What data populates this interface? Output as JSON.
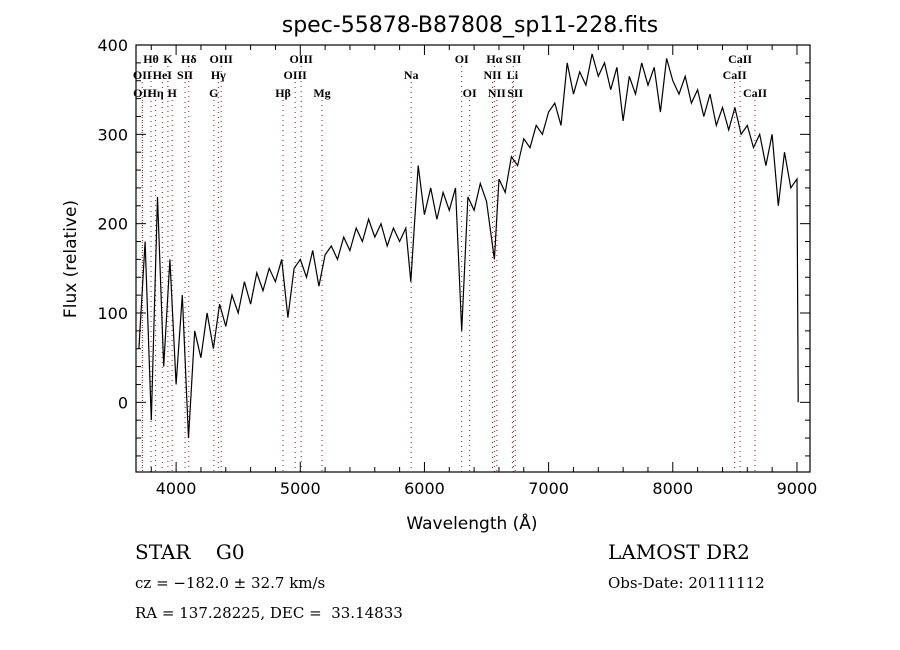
{
  "chart_data": {
    "type": "line",
    "title": "spec-55878-B87808_sp11-228.fits",
    "xlabel": "Wavelength (Å)",
    "ylabel": "Flux (relative)",
    "xlim": [
      3677,
      9105
    ],
    "ylim": [
      -78,
      400
    ],
    "xticks": [
      4000,
      5000,
      6000,
      7000,
      8000,
      9000
    ],
    "yticks": [
      0,
      100,
      200,
      300,
      400
    ],
    "grid": false,
    "series": [
      {
        "name": "spectrum",
        "x": [
          3700,
          3750,
          3800,
          3850,
          3900,
          3950,
          4000,
          4050,
          4100,
          4150,
          4200,
          4250,
          4300,
          4350,
          4400,
          4450,
          4500,
          4550,
          4600,
          4650,
          4700,
          4750,
          4800,
          4850,
          4900,
          4950,
          5000,
          5050,
          5100,
          5150,
          5200,
          5250,
          5300,
          5350,
          5400,
          5450,
          5500,
          5550,
          5600,
          5650,
          5700,
          5750,
          5800,
          5850,
          5890,
          5950,
          6000,
          6050,
          6100,
          6150,
          6200,
          6250,
          6300,
          6350,
          6400,
          6450,
          6500,
          6563,
          6600,
          6650,
          6700,
          6750,
          6800,
          6850,
          6900,
          6950,
          7000,
          7050,
          7100,
          7150,
          7200,
          7250,
          7300,
          7350,
          7400,
          7450,
          7500,
          7550,
          7600,
          7650,
          7700,
          7750,
          7800,
          7850,
          7900,
          7950,
          8000,
          8050,
          8100,
          8150,
          8200,
          8250,
          8300,
          8350,
          8400,
          8450,
          8500,
          8550,
          8600,
          8650,
          8700,
          8750,
          8800,
          8850,
          8900,
          8950,
          9000,
          9010
        ],
        "y": [
          60,
          180,
          -20,
          230,
          40,
          160,
          20,
          120,
          -40,
          80,
          50,
          100,
          60,
          110,
          85,
          120,
          100,
          135,
          110,
          145,
          125,
          150,
          135,
          160,
          95,
          150,
          160,
          140,
          170,
          130,
          165,
          175,
          160,
          185,
          170,
          195,
          180,
          205,
          185,
          200,
          175,
          195,
          180,
          195,
          135,
          265,
          210,
          240,
          205,
          235,
          215,
          240,
          80,
          230,
          215,
          245,
          225,
          160,
          250,
          235,
          275,
          265,
          295,
          285,
          310,
          300,
          325,
          335,
          310,
          380,
          345,
          370,
          355,
          390,
          365,
          380,
          350,
          375,
          315,
          365,
          345,
          380,
          355,
          375,
          325,
          385,
          360,
          345,
          365,
          335,
          350,
          320,
          345,
          310,
          330,
          305,
          330,
          300,
          310,
          285,
          300,
          265,
          300,
          220,
          280,
          240,
          250,
          0
        ]
      }
    ],
    "line_ids": [
      {
        "label": "Hθ",
        "wavelength": 3798,
        "row": 1
      },
      {
        "label": "K",
        "wavelength": 3934,
        "row": 1
      },
      {
        "label": "Hδ",
        "wavelength": 4102,
        "row": 1
      },
      {
        "label": "OIII",
        "wavelength": 4363,
        "row": 1
      },
      {
        "label": "OIII",
        "wavelength": 5007,
        "row": 1
      },
      {
        "label": "OI",
        "wavelength": 6300,
        "row": 1
      },
      {
        "label": "Hα",
        "wavelength": 6563,
        "row": 1
      },
      {
        "label": "SII",
        "wavelength": 6716,
        "row": 1
      },
      {
        "label": "CaII",
        "wavelength": 8542,
        "row": 1
      },
      {
        "label": "OII",
        "wavelength": 3727,
        "row": 2
      },
      {
        "label": "HeI",
        "wavelength": 3889,
        "row": 2
      },
      {
        "label": "SII",
        "wavelength": 4072,
        "row": 2
      },
      {
        "label": "Hγ",
        "wavelength": 4340,
        "row": 2
      },
      {
        "label": "OIII",
        "wavelength": 4959,
        "row": 2
      },
      {
        "label": "Na",
        "wavelength": 5893,
        "row": 2
      },
      {
        "label": "NII",
        "wavelength": 6548,
        "row": 2
      },
      {
        "label": "Li",
        "wavelength": 6708,
        "row": 2
      },
      {
        "label": "CaII",
        "wavelength": 8498,
        "row": 2
      },
      {
        "label": "OII",
        "wavelength": 3729,
        "row": 3
      },
      {
        "label": "Hη",
        "wavelength": 3835,
        "row": 3
      },
      {
        "label": "H",
        "wavelength": 3968,
        "row": 3
      },
      {
        "label": "G",
        "wavelength": 4304,
        "row": 3
      },
      {
        "label": "Hβ",
        "wavelength": 4861,
        "row": 3
      },
      {
        "label": "Mg",
        "wavelength": 5175,
        "row": 3
      },
      {
        "label": "OI",
        "wavelength": 6364,
        "row": 3
      },
      {
        "label": "NII",
        "wavelength": 6583,
        "row": 3
      },
      {
        "label": "SII",
        "wavelength": 6731,
        "row": 3
      },
      {
        "label": "CaII",
        "wavelength": 8662,
        "row": 3
      }
    ],
    "colors": {
      "line": "#000000",
      "id_lines": "#8b1a1a"
    }
  },
  "info": {
    "object_class": "STAR    G0",
    "cz": "cz = −182.0 ± 32.7 km/s",
    "coords": "RA = 137.28225, DEC =  33.14833",
    "survey": "LAMOST DR2",
    "obs_date": "Obs-Date: 20111112"
  }
}
